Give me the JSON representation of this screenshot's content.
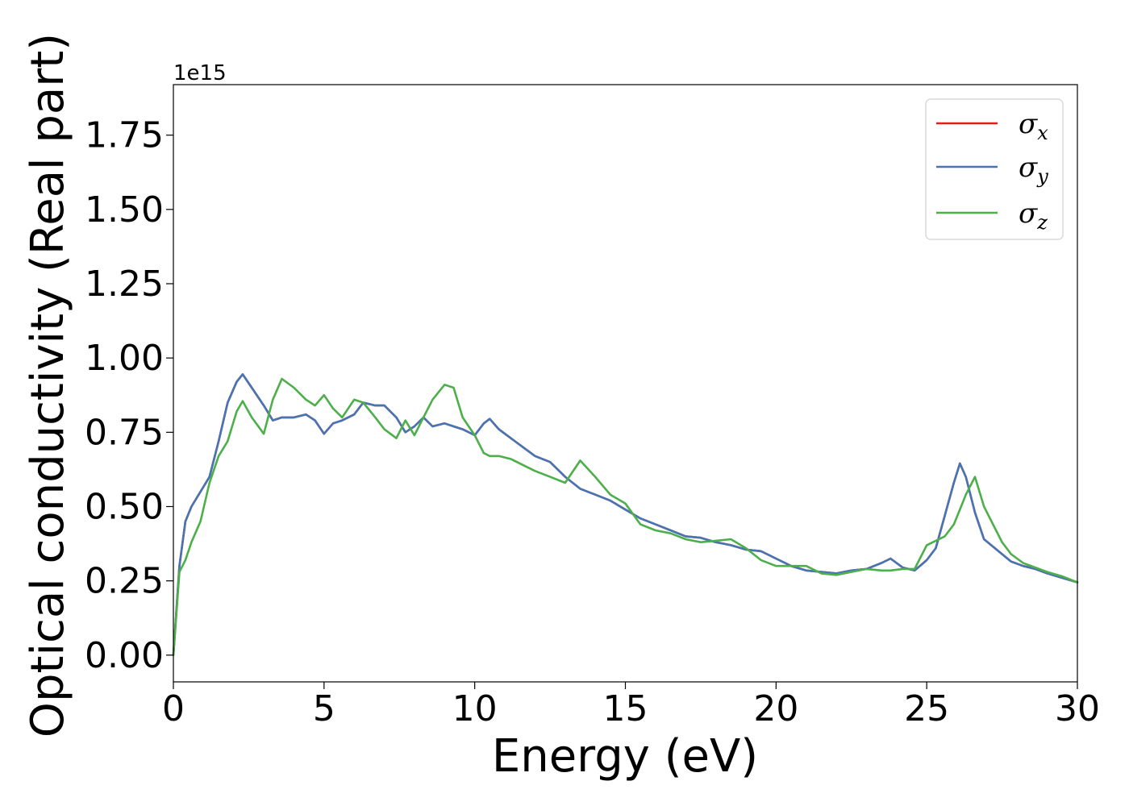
{
  "chart_data": {
    "type": "line",
    "xlabel": "Energy (eV)",
    "ylabel": "Optical conductivity (Real part)",
    "y_offset_label": "1e15",
    "xlim": [
      0,
      30
    ],
    "ylim": [
      -0.09,
      1.92
    ],
    "xticks": [
      0,
      5,
      10,
      15,
      20,
      25,
      30
    ],
    "xtick_labels": [
      "0",
      "5",
      "10",
      "15",
      "20",
      "25",
      "30"
    ],
    "yticks": [
      0,
      0.25,
      0.5,
      0.75,
      1.0,
      1.25,
      1.5,
      1.75
    ],
    "ytick_labels": [
      "0.00",
      "0.25",
      "0.50",
      "0.75",
      "1.00",
      "1.25",
      "1.50",
      "1.75"
    ],
    "grid": false,
    "legend_position": "top-right",
    "x": [
      0,
      0.2,
      0.4,
      0.6,
      0.9,
      1.2,
      1.5,
      1.8,
      2.1,
      2.3,
      2.6,
      3.0,
      3.3,
      3.6,
      4.0,
      4.4,
      4.7,
      5.0,
      5.3,
      5.6,
      6.0,
      6.3,
      6.7,
      7.0,
      7.4,
      7.7,
      8.0,
      8.3,
      8.6,
      9.0,
      9.3,
      9.6,
      10.0,
      10.3,
      10.5,
      10.8,
      11.2,
      11.6,
      12.0,
      12.5,
      13.0,
      13.5,
      14.0,
      14.5,
      15.0,
      15.5,
      16.0,
      16.5,
      17.0,
      17.5,
      18.0,
      18.5,
      19.0,
      19.5,
      20.0,
      20.5,
      21.0,
      21.5,
      22.0,
      22.5,
      23.0,
      23.5,
      23.8,
      24.2,
      24.6,
      25.0,
      25.3,
      25.6,
      25.9,
      26.1,
      26.3,
      26.6,
      26.9,
      27.2,
      27.5,
      27.8,
      28.2,
      28.6,
      29.0,
      29.5,
      30.0
    ],
    "series": [
      {
        "name": "σx",
        "label_base": "σ",
        "label_sub": "x",
        "color": "#e41a1c",
        "values": [
          0.0,
          0.3,
          0.45,
          0.5,
          0.55,
          0.6,
          0.72,
          0.85,
          0.92,
          0.945,
          0.9,
          0.84,
          0.79,
          0.8,
          0.8,
          0.81,
          0.79,
          0.745,
          0.78,
          0.79,
          0.81,
          0.85,
          0.84,
          0.84,
          0.8,
          0.75,
          0.77,
          0.8,
          0.77,
          0.78,
          0.77,
          0.76,
          0.74,
          0.78,
          0.795,
          0.76,
          0.73,
          0.7,
          0.67,
          0.65,
          0.6,
          0.56,
          0.54,
          0.52,
          0.49,
          0.46,
          0.44,
          0.42,
          0.4,
          0.395,
          0.38,
          0.37,
          0.355,
          0.35,
          0.325,
          0.3,
          0.285,
          0.28,
          0.275,
          0.285,
          0.29,
          0.31,
          0.325,
          0.295,
          0.285,
          0.32,
          0.36,
          0.47,
          0.58,
          0.645,
          0.6,
          0.48,
          0.39,
          0.365,
          0.34,
          0.315,
          0.3,
          0.29,
          0.275,
          0.26,
          0.245
        ]
      },
      {
        "name": "σy",
        "label_base": "σ",
        "label_sub": "y",
        "color": "#4575b4",
        "values": [
          0.0,
          0.3,
          0.45,
          0.5,
          0.55,
          0.6,
          0.72,
          0.85,
          0.92,
          0.945,
          0.9,
          0.84,
          0.79,
          0.8,
          0.8,
          0.81,
          0.79,
          0.745,
          0.78,
          0.79,
          0.81,
          0.85,
          0.84,
          0.84,
          0.8,
          0.75,
          0.77,
          0.8,
          0.77,
          0.78,
          0.77,
          0.76,
          0.74,
          0.78,
          0.795,
          0.76,
          0.73,
          0.7,
          0.67,
          0.65,
          0.6,
          0.56,
          0.54,
          0.52,
          0.49,
          0.46,
          0.44,
          0.42,
          0.4,
          0.395,
          0.38,
          0.37,
          0.355,
          0.35,
          0.325,
          0.3,
          0.285,
          0.28,
          0.275,
          0.285,
          0.29,
          0.31,
          0.325,
          0.295,
          0.285,
          0.32,
          0.36,
          0.47,
          0.58,
          0.645,
          0.6,
          0.48,
          0.39,
          0.365,
          0.34,
          0.315,
          0.3,
          0.29,
          0.275,
          0.26,
          0.245
        ]
      },
      {
        "name": "σz",
        "label_base": "σ",
        "label_sub": "z",
        "color": "#4daf4a",
        "values": [
          0.0,
          0.28,
          0.32,
          0.38,
          0.45,
          0.58,
          0.67,
          0.72,
          0.82,
          0.855,
          0.8,
          0.745,
          0.86,
          0.93,
          0.9,
          0.86,
          0.84,
          0.875,
          0.83,
          0.8,
          0.86,
          0.85,
          0.8,
          0.76,
          0.73,
          0.79,
          0.74,
          0.8,
          0.86,
          0.91,
          0.9,
          0.8,
          0.74,
          0.68,
          0.67,
          0.67,
          0.66,
          0.64,
          0.62,
          0.6,
          0.58,
          0.655,
          0.6,
          0.54,
          0.51,
          0.44,
          0.42,
          0.41,
          0.39,
          0.38,
          0.385,
          0.39,
          0.36,
          0.32,
          0.3,
          0.3,
          0.3,
          0.275,
          0.27,
          0.28,
          0.29,
          0.285,
          0.285,
          0.29,
          0.29,
          0.37,
          0.385,
          0.4,
          0.44,
          0.49,
          0.54,
          0.6,
          0.5,
          0.44,
          0.38,
          0.34,
          0.31,
          0.295,
          0.28,
          0.265,
          0.245
        ]
      }
    ]
  }
}
